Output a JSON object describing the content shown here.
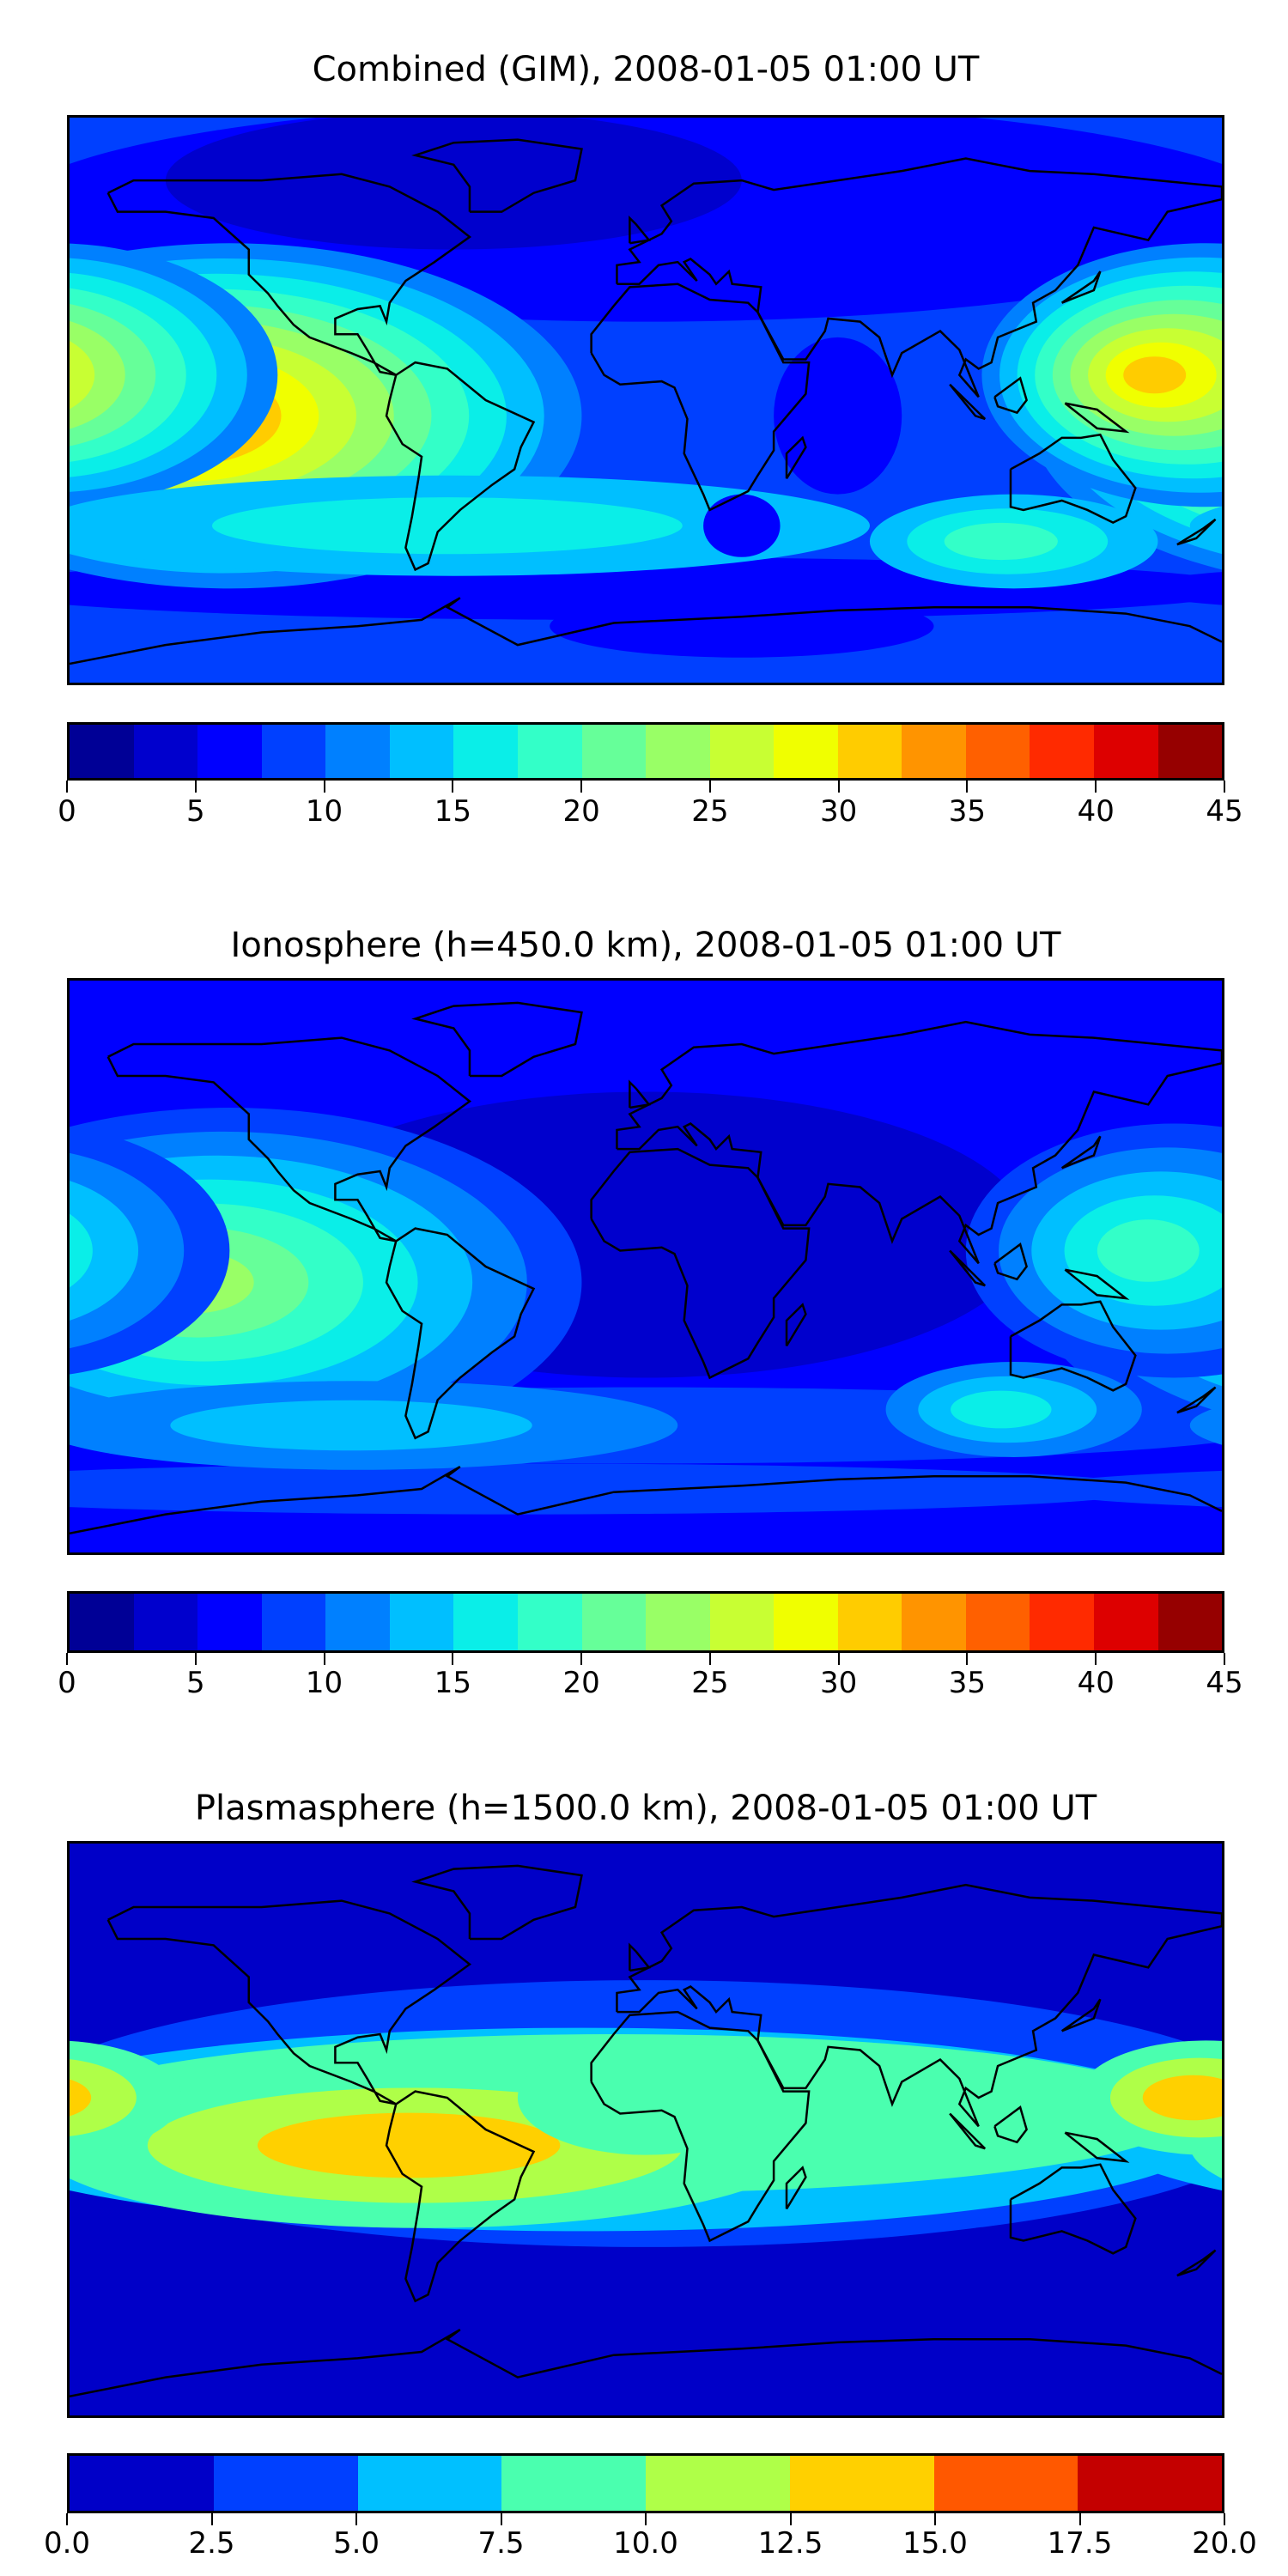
{
  "chart_data": [
    {
      "type": "heatmap",
      "title": "Combined (GIM), 2008-01-05 01:00 UT",
      "xlabel": "",
      "ylabel": "",
      "colorbar": {
        "ticks": [
          "0",
          "5",
          "10",
          "15",
          "20",
          "25",
          "30",
          "35",
          "40",
          "45"
        ],
        "range": [
          0,
          45
        ],
        "step": 2.5,
        "colors": [
          "#000096",
          "#0000cd",
          "#0000ff",
          "#0040ff",
          "#0080ff",
          "#00bfff",
          "#0aeee8",
          "#33ffc8",
          "#66ff99",
          "#99ff66",
          "#c8ff33",
          "#f0ff00",
          "#ffcc00",
          "#ff9400",
          "#ff6000",
          "#ff2a00",
          "#dd0000",
          "#960000"
        ]
      },
      "features": "Max ~35-37.5 over central Pacific near 150W, 5S; secondary max ~30 near 175E, 10N; min 0-5 over North Atlantic/Canada"
    },
    {
      "type": "heatmap",
      "title": "Ionosphere  (h=450.0 km), 2008-01-05 01:00 UT",
      "xlabel": "",
      "ylabel": "",
      "colorbar": {
        "ticks": [
          "0",
          "5",
          "10",
          "15",
          "20",
          "25",
          "30",
          "35",
          "40",
          "45"
        ],
        "range": [
          0,
          45
        ],
        "step": 2.5,
        "colors": [
          "#000096",
          "#0000cd",
          "#0000ff",
          "#0040ff",
          "#0080ff",
          "#00bfff",
          "#0aeee8",
          "#33ffc8",
          "#66ff99",
          "#99ff66",
          "#c8ff33",
          "#f0ff00",
          "#ffcc00",
          "#ff9400",
          "#ff6000",
          "#ff2a00",
          "#dd0000",
          "#960000"
        ]
      },
      "features": "Max ~22.5-25 over central Pacific near 150W, 5S; min 0-2.5 over Atlantic/Africa"
    },
    {
      "type": "heatmap",
      "title": "Plasmasphere (h=1500.0 km), 2008-01-05 01:00 UT",
      "xlabel": "",
      "ylabel": "",
      "colorbar": {
        "ticks": [
          "0.0",
          "2.5",
          "5.0",
          "7.5",
          "10.0",
          "12.5",
          "15.0",
          "17.5",
          "20.0"
        ],
        "range": [
          0,
          20
        ],
        "step": 2.5,
        "colors": [
          "#0000c8",
          "#0040ff",
          "#00c0ff",
          "#4affaf",
          "#afff48",
          "#ffd000",
          "#ff5800",
          "#c40000"
        ]
      },
      "features": "Max 12.5-15 over South America/eastern Pacific and near 180E 10N; low-latitude band 7.5-12.5; poles 0-2.5"
    }
  ]
}
